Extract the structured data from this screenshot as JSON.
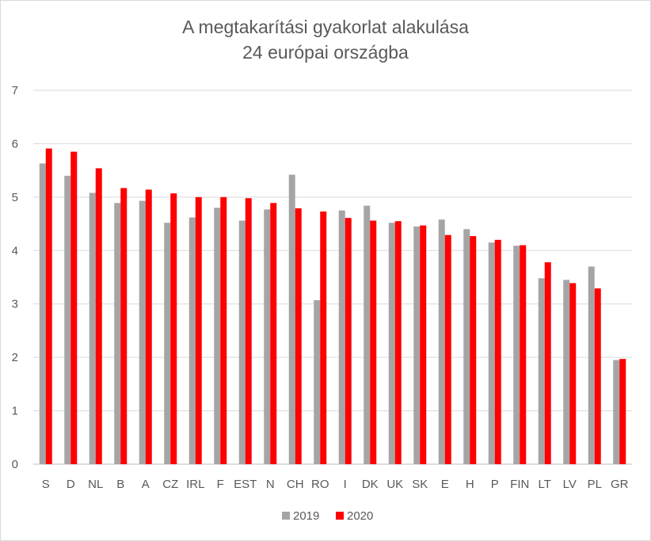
{
  "chart_data": {
    "type": "bar",
    "title": [
      "A megtakarítási gyakorlat alakulása",
      "24 európai országba"
    ],
    "xlabel": "",
    "ylabel": "",
    "ylim": [
      0,
      7
    ],
    "yticks": [
      "0",
      "1",
      "2",
      "3",
      "4",
      "5",
      "6",
      "7"
    ],
    "grid": true,
    "legend_position": "bottom",
    "categories": [
      "S",
      "D",
      "NL",
      "B",
      "A",
      "CZ",
      "IRL",
      "F",
      "EST",
      "N",
      "CH",
      "RO",
      "I",
      "DK",
      "UK",
      "SK",
      "E",
      "H",
      "P",
      "FIN",
      "LT",
      "LV",
      "PL",
      "GR"
    ],
    "series": [
      {
        "name": "2019",
        "color": "#a5a5a5",
        "values": [
          5.63,
          5.4,
          5.08,
          4.89,
          4.93,
          4.52,
          4.62,
          4.8,
          4.56,
          4.77,
          5.42,
          3.07,
          4.75,
          4.84,
          4.52,
          4.45,
          4.58,
          4.4,
          4.15,
          4.09,
          3.48,
          3.45,
          3.7,
          1.95
        ]
      },
      {
        "name": "2020",
        "color": "#ff0000",
        "values": [
          5.91,
          5.85,
          5.54,
          5.17,
          5.14,
          5.07,
          5.0,
          5.0,
          4.98,
          4.89,
          4.79,
          4.73,
          4.61,
          4.56,
          4.55,
          4.47,
          4.29,
          4.27,
          4.2,
          4.1,
          3.78,
          3.39,
          3.29,
          1.97
        ]
      }
    ]
  }
}
